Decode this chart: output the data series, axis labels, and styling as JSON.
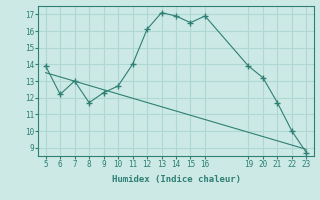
{
  "xlabel": "Humidex (Indice chaleur)",
  "x_values": [
    5,
    6,
    7,
    8,
    9,
    10,
    11,
    12,
    13,
    14,
    15,
    16,
    19,
    20,
    21,
    22,
    23
  ],
  "y_values": [
    13.9,
    12.2,
    13.0,
    11.7,
    12.3,
    12.7,
    14.0,
    16.1,
    17.1,
    16.9,
    16.5,
    16.9,
    13.9,
    13.2,
    11.7,
    10.0,
    8.7
  ],
  "line_color": "#2e7f74",
  "bg_color": "#cce9e5",
  "grid_color": "#b0d8d2",
  "ylim": [
    8.5,
    17.5
  ],
  "yticks": [
    9,
    10,
    11,
    12,
    13,
    14,
    15,
    16,
    17
  ],
  "xticks": [
    5,
    6,
    7,
    8,
    9,
    10,
    11,
    12,
    13,
    14,
    15,
    16,
    19,
    20,
    21,
    22,
    23
  ],
  "trend_x": [
    5,
    23
  ],
  "trend_y": [
    13.5,
    8.9
  ]
}
